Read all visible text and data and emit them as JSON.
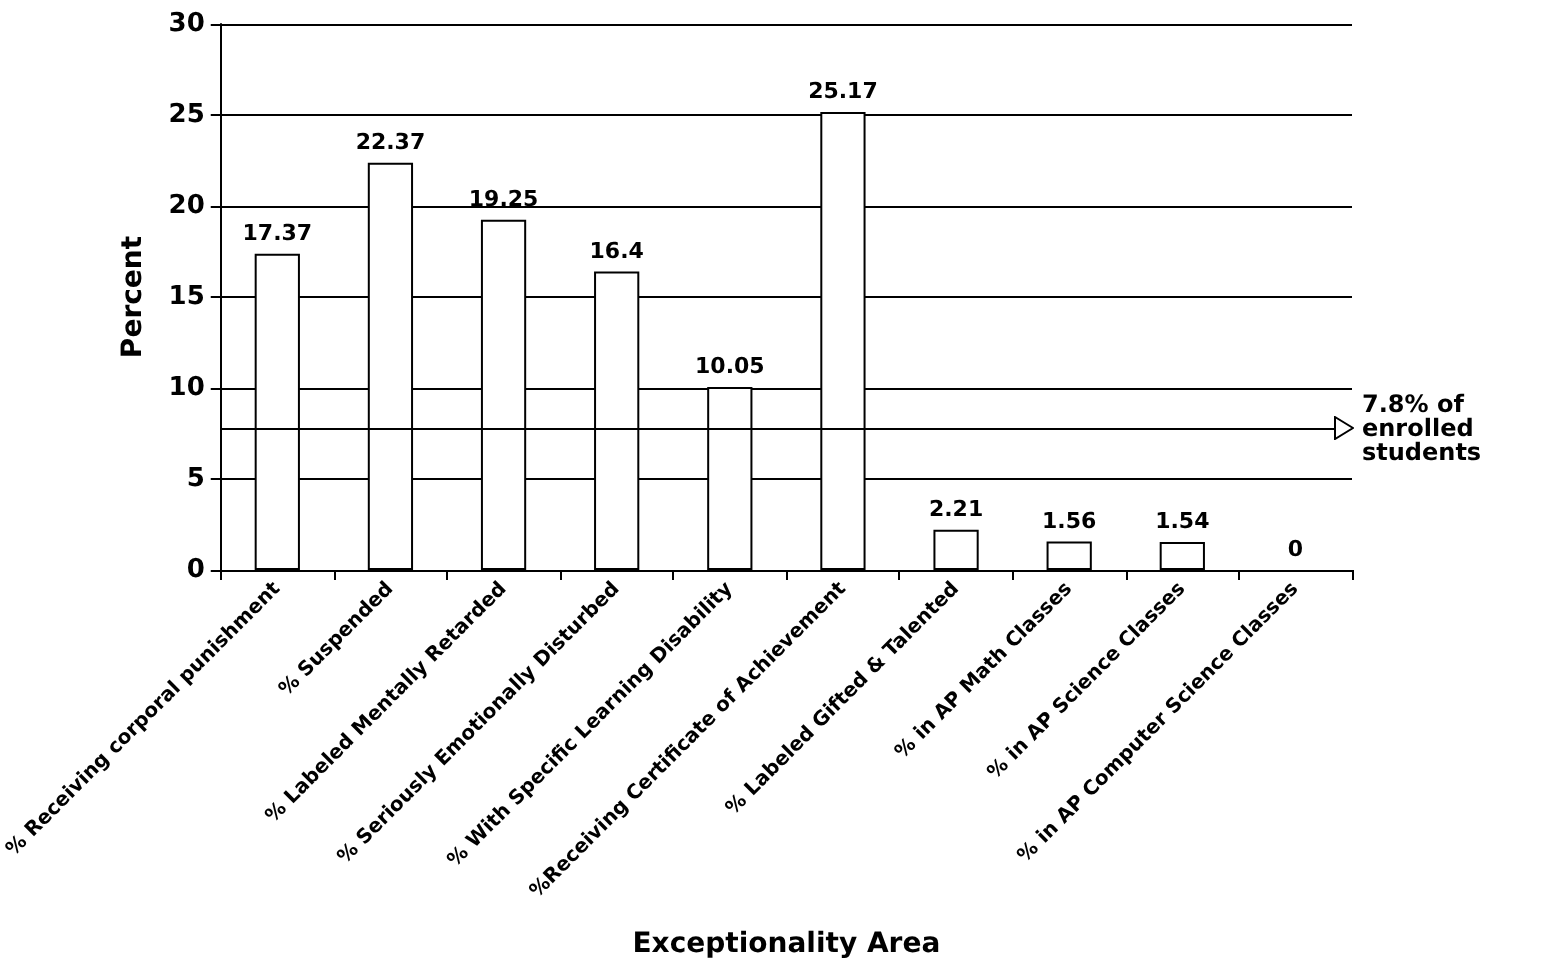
{
  "chart_data": {
    "type": "bar",
    "xlabel": "Exceptionality Area",
    "ylabel": "Percent",
    "categories": [
      "% Receiving corporal punishment",
      "% Suspended",
      "% Labeled Mentally Retarded",
      "% Seriously Emotionally Disturbed",
      "% With Specific Learning Disability",
      "%Receiving Certificate of Achievement",
      "% Labeled Gifted & Talented",
      "% in AP Math Classes",
      "% in AP Science Classes",
      "% in AP Computer Science Classes"
    ],
    "values": [
      17.37,
      22.37,
      19.25,
      16.4,
      10.05,
      25.17,
      2.21,
      1.56,
      1.54,
      0
    ],
    "color": "#ffffff",
    "ylim": [
      0,
      30
    ],
    "yticks": [
      0,
      5,
      10,
      15,
      20,
      25,
      30
    ],
    "grid": "y",
    "data_labels": true,
    "ref_lines": [
      {
        "axis": "y",
        "value": 7.8,
        "label": "7.8% of enrolled students"
      }
    ]
  }
}
